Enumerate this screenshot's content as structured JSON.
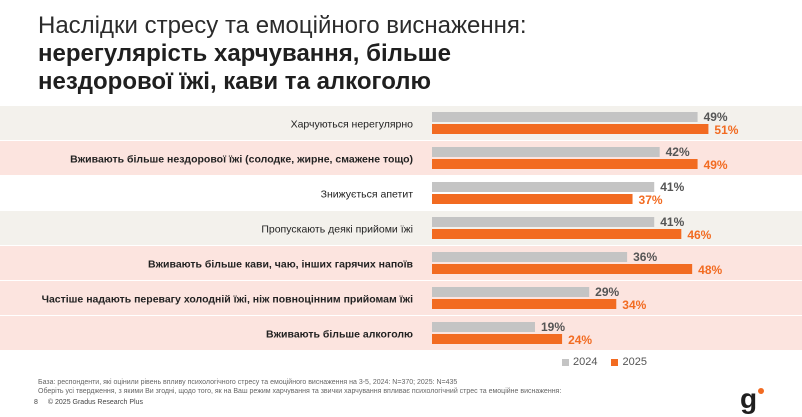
{
  "title": {
    "line1": "Наслідки стресу та емоційного виснаження:",
    "line2": "нерегулярість харчування, більше",
    "line3": "нездорової їжі, кави та алкоголю"
  },
  "chart_data": {
    "type": "bar",
    "orientation": "horizontal",
    "categories": [
      "Харчуються нерегулярно",
      "Вживають більше нездорової їжі (солодке, жирне, смажене тощо)",
      "Знижується апетит",
      "Пропускають деякі прийоми їжі",
      "Вживають більше кави, чаю, інших гарячих напоїв",
      "Частіше надають перевагу холодній їжі, ніж повноцінним прийомам їжі",
      "Вживають більше алкоголю"
    ],
    "category_bold": [
      false,
      true,
      false,
      false,
      true,
      true,
      true
    ],
    "highlighted_rows": [
      false,
      true,
      false,
      false,
      true,
      true,
      true
    ],
    "series": [
      {
        "name": "2024",
        "color": "#c4c4c4",
        "values": [
          49,
          42,
          41,
          41,
          36,
          29,
          19
        ],
        "labels": [
          "49%",
          "42%",
          "41%",
          "41%",
          "36%",
          "29%",
          "19%"
        ]
      },
      {
        "name": "2025",
        "color": "#f26b21",
        "values": [
          51,
          49,
          37,
          46,
          48,
          34,
          24
        ],
        "labels": [
          "51%",
          "49%",
          "37%",
          "46%",
          "48%",
          "34%",
          "24%"
        ]
      }
    ],
    "xlim": [
      0,
      100
    ],
    "legend": "bottom-right",
    "row_colors": {
      "plain": "#f3f1ec",
      "highlight": "#fce4df",
      "white": "#ffffff"
    }
  },
  "footnote": {
    "line1": "База: респонденти, які оцінили рівень впливу психологічного стресу та емоційного виснаження на 3-5, 2024: N=370; 2025: N=435",
    "line2": "Оберіть усі твердження, з якими Ви згодні, щодо того, як на Ваш режим харчування та звички харчування впливає психологічний стрес та емоційне виснаження:"
  },
  "footer": {
    "page_number": "8",
    "copyright": "© 2025 Gradus Research Plus"
  },
  "logo": {
    "letter": "g",
    "accent_color": "#f26b21"
  }
}
